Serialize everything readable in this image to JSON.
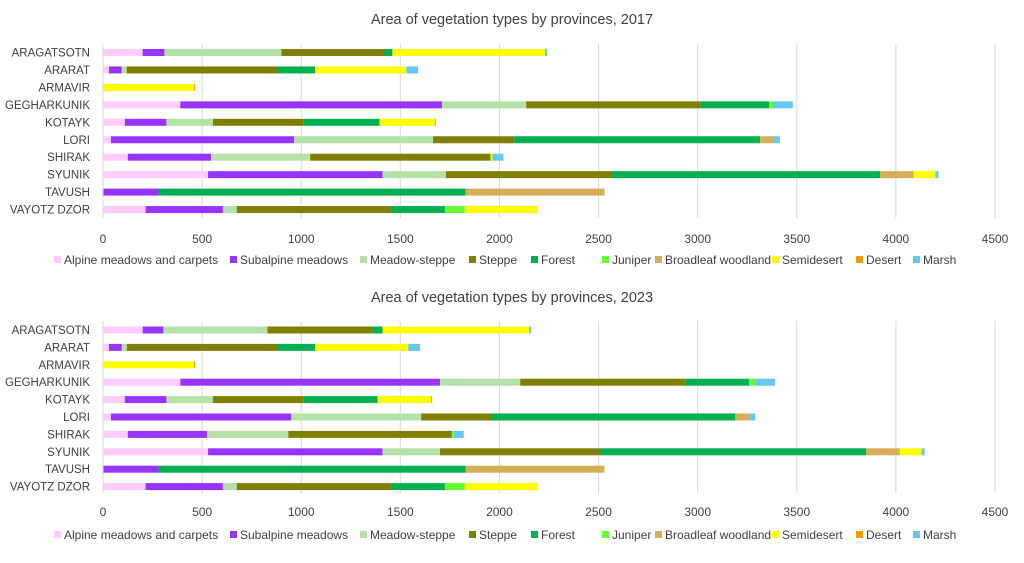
{
  "chart_data": [
    {
      "type": "bar",
      "orientation": "horizontal",
      "stacked": true,
      "title": "Area of vegetation types by provinces, 2017",
      "categories": [
        "ARAGATSOTN",
        "ARARAT",
        "ARMAVIR",
        "GEGHARKUNIK",
        "KOTAYK",
        "LORI",
        "SHIRAK",
        "SYUNIK",
        "TAVUSH",
        "VAYOTZ DZOR"
      ],
      "xlim": [
        0,
        4500
      ],
      "xticks": [
        "0",
        "500",
        "1000",
        "1500",
        "2000",
        "2500",
        "3000",
        "3500",
        "4000",
        "4500"
      ],
      "grid": true,
      "legend_position": "bottom",
      "series": [
        {
          "name": "Alpine meadows and carpets",
          "color": "#FFCCFF",
          "values": [
            200,
            30,
            0,
            390,
            110,
            40,
            125,
            530,
            0,
            215
          ]
        },
        {
          "name": "Subalpine meadows",
          "color": "#9933FF",
          "values": [
            110,
            65,
            0,
            1320,
            210,
            925,
            420,
            880,
            280,
            390
          ]
        },
        {
          "name": "Meadow-steppe",
          "color": "#B4E2A8",
          "values": [
            590,
            25,
            0,
            425,
            235,
            700,
            500,
            320,
            0,
            70
          ]
        },
        {
          "name": "Steppe",
          "color": "#808000",
          "values": [
            520,
            760,
            0,
            880,
            455,
            410,
            910,
            835,
            0,
            780
          ]
        },
        {
          "name": "Forest",
          "color": "#00B050",
          "values": [
            40,
            190,
            0,
            345,
            385,
            1240,
            0,
            1355,
            1550,
            270
          ]
        },
        {
          "name": "Juniper",
          "color": "#66FF33",
          "values": [
            0,
            0,
            0,
            20,
            0,
            0,
            0,
            0,
            0,
            100
          ]
        },
        {
          "name": "Broadleaf woodland",
          "color": "#D6AE57",
          "values": [
            0,
            0,
            0,
            0,
            0,
            70,
            0,
            170,
            700,
            0
          ]
        },
        {
          "name": "Semidesert",
          "color": "#FFFF00",
          "values": [
            770,
            460,
            460,
            0,
            280,
            0,
            10,
            110,
            0,
            370
          ]
        },
        {
          "name": "Desert",
          "color": "#F79A00",
          "values": [
            0,
            0,
            5,
            0,
            0,
            0,
            0,
            0,
            0,
            0
          ]
        },
        {
          "name": "Marsh",
          "color": "#66C7F0",
          "values": [
            10,
            60,
            0,
            100,
            5,
            30,
            55,
            15,
            0,
            0
          ]
        }
      ]
    },
    {
      "type": "bar",
      "orientation": "horizontal",
      "stacked": true,
      "title": "Area of vegetation types by provinces, 2023",
      "categories": [
        "ARAGATSOTN",
        "ARARAT",
        "ARMAVIR",
        "GEGHARKUNIK",
        "KOTAYK",
        "LORI",
        "SHIRAK",
        "SYUNIK",
        "TAVUSH",
        "VAYOTZ DZOR"
      ],
      "xlim": [
        0,
        4500
      ],
      "xticks": [
        "0",
        "500",
        "1000",
        "1500",
        "2000",
        "2500",
        "3000",
        "3500",
        "4000",
        "4500"
      ],
      "grid": true,
      "legend_position": "bottom",
      "series": [
        {
          "name": "Alpine meadows and carpets",
          "color": "#FFCCFF",
          "values": [
            200,
            30,
            0,
            390,
            110,
            40,
            125,
            530,
            0,
            215
          ]
        },
        {
          "name": "Subalpine meadows",
          "color": "#9933FF",
          "values": [
            105,
            65,
            0,
            1310,
            210,
            910,
            400,
            880,
            280,
            390
          ]
        },
        {
          "name": "Meadow-steppe",
          "color": "#B4E2A8",
          "values": [
            525,
            25,
            0,
            405,
            235,
            655,
            410,
            290,
            0,
            70
          ]
        },
        {
          "name": "Steppe",
          "color": "#808000",
          "values": [
            530,
            760,
            0,
            830,
            455,
            355,
            825,
            810,
            0,
            780
          ]
        },
        {
          "name": "Forest",
          "color": "#00B050",
          "values": [
            50,
            190,
            0,
            325,
            375,
            1230,
            0,
            1340,
            1550,
            270
          ]
        },
        {
          "name": "Juniper",
          "color": "#66FF33",
          "values": [
            0,
            0,
            0,
            30,
            0,
            0,
            10,
            0,
            0,
            100
          ]
        },
        {
          "name": "Broadleaf woodland",
          "color": "#D6AE57",
          "values": [
            0,
            0,
            0,
            0,
            0,
            70,
            0,
            170,
            700,
            0
          ]
        },
        {
          "name": "Semidesert",
          "color": "#FFFF00",
          "values": [
            740,
            470,
            460,
            0,
            270,
            0,
            0,
            110,
            0,
            370
          ]
        },
        {
          "name": "Desert",
          "color": "#F79A00",
          "values": [
            0,
            0,
            5,
            0,
            0,
            0,
            0,
            0,
            0,
            0
          ]
        },
        {
          "name": "Marsh",
          "color": "#66C7F0",
          "values": [
            10,
            60,
            0,
            100,
            5,
            30,
            50,
            15,
            0,
            0
          ]
        }
      ]
    }
  ]
}
